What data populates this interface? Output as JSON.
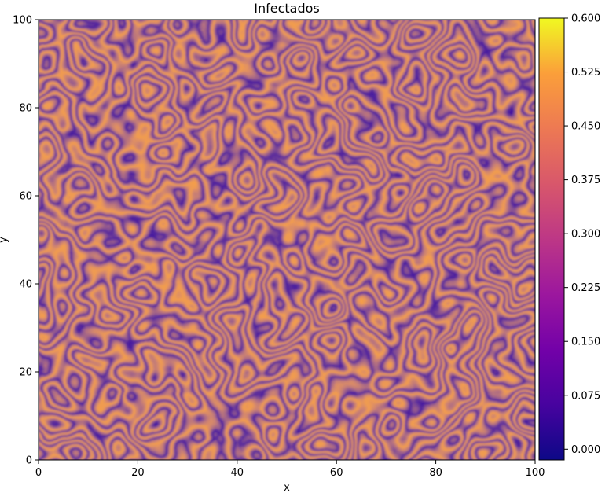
{
  "chart_data": {
    "type": "heatmap",
    "title": "Infectados",
    "xlabel": "x",
    "ylabel": "y",
    "xlim": [
      0,
      100
    ],
    "ylim": [
      0,
      100
    ],
    "x_ticks": [
      "0",
      "20",
      "40",
      "60",
      "80",
      "100"
    ],
    "y_ticks": [
      "0",
      "20",
      "40",
      "60",
      "80",
      "100"
    ],
    "colorbar": {
      "min": -0.015,
      "max": 0.6,
      "ticks": [
        "0.000",
        "0.075",
        "0.150",
        "0.225",
        "0.300",
        "0.375",
        "0.450",
        "0.525",
        "0.600"
      ]
    },
    "colormap": "plasma",
    "pattern": "labyrinthine stripe (Turing) pattern",
    "grid": false
  }
}
